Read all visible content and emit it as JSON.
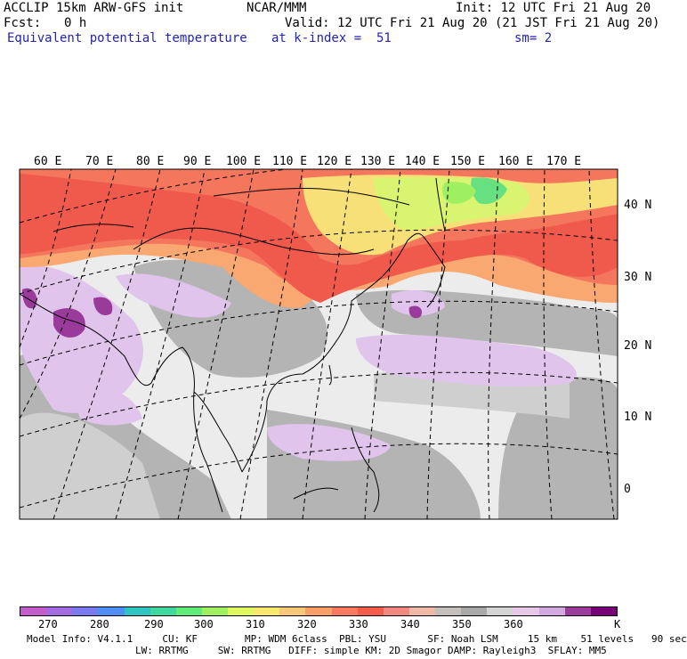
{
  "header": {
    "model": "ACCLIP 15km ARW-GFS init",
    "org": "NCAR/MMM",
    "init": "Init: 12 UTC Fri 21 Aug 20",
    "fcst_label": "Fcst:",
    "fcst_value": "0 h",
    "valid": "Valid: 12 UTC Fri 21 Aug 20 (21 JST Fri 21 Aug 20)",
    "field": "Equivalent potential temperature",
    "k_index": "at k-index =  51",
    "smooth": "sm= 2"
  },
  "map": {
    "lon_labels": [
      "60 E",
      "70 E",
      "80 E",
      "90 E",
      "100 E",
      "110 E",
      "120 E",
      "130 E",
      "140 E",
      "150 E",
      "160 E",
      "170 E"
    ],
    "lat_labels": [
      "40 N",
      "30 N",
      "20 N",
      "10 N",
      "0"
    ]
  },
  "colorbar": {
    "colors": [
      "#c45ccc",
      "#a46ae0",
      "#7a7af0",
      "#4f8ef2",
      "#2ec4c0",
      "#3ed8a0",
      "#60ec78",
      "#9ef060",
      "#e0f860",
      "#f8e870",
      "#f8c878",
      "#f8a066",
      "#f87860",
      "#f45c4c",
      "#f08a80",
      "#f0b8a6",
      "#c4c0bc",
      "#a8a8a8",
      "#d4d4d4",
      "#e8c8e8",
      "#d4a8e0",
      "#9c3c9c",
      "#780078"
    ],
    "labels": [
      "270",
      "280",
      "290",
      "300",
      "310",
      "320",
      "330",
      "340",
      "350",
      "360",
      "K"
    ]
  },
  "footer": {
    "line1": "Model Info: V4.1.1     CU: KF        MP: WDM 6class  PBL: YSU       SF: Noah LSM     15 km    51 levels   90 sec",
    "line2": "LW: RRTMG     SW: RRTMG   DIFF: simple KM: 2D Smagor DAMP: Rayleigh3  SFLAY: MM5"
  }
}
